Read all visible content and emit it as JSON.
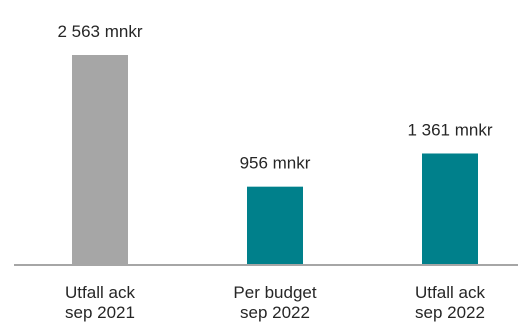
{
  "chart_data": {
    "type": "bar",
    "categories": [
      [
        "Utfall ack",
        "sep 2021"
      ],
      [
        "Per budget",
        "sep 2022"
      ],
      [
        "Utfall ack",
        "sep 2022"
      ]
    ],
    "values": [
      2563,
      956,
      1361
    ],
    "data_labels": [
      "2 563 mnkr",
      "956 mnkr",
      "1 361 mnkr"
    ],
    "bar_colors": [
      "#a6a6a6",
      "#00808b",
      "#00808b"
    ],
    "unit": "mnkr",
    "title": "",
    "xlabel": "",
    "ylabel": "",
    "ylim": [
      0,
      2563
    ],
    "grid": false,
    "legend": "none"
  }
}
